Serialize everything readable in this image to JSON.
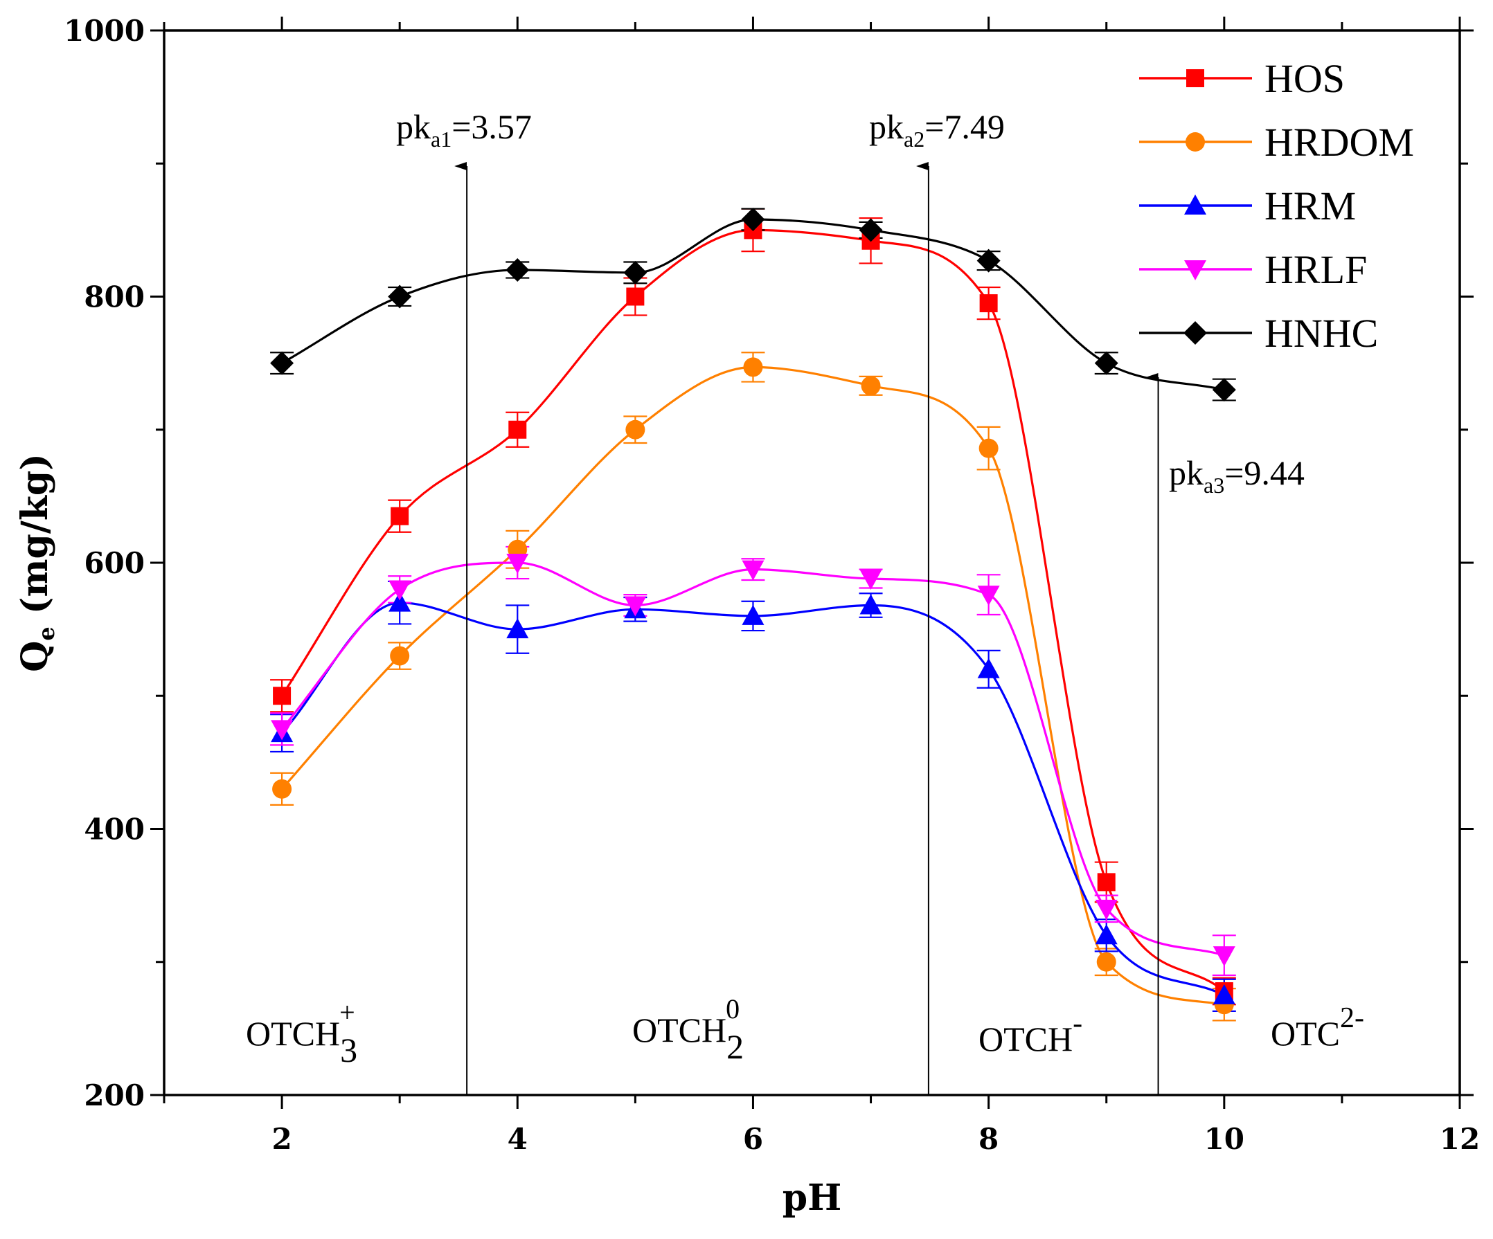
{
  "chart_data": {
    "type": "line",
    "title": "",
    "xlabel": "pH",
    "ylabel": "Q",
    "ylabel_sub": "e",
    "ylabel_unit": "(mg/kg)",
    "xlim": [
      1,
      12
    ],
    "ylim": [
      200,
      1000
    ],
    "xticks": [
      2,
      4,
      6,
      8,
      10,
      12
    ],
    "yticks": [
      200,
      400,
      600,
      800,
      1000
    ],
    "grid": false,
    "legend_position": "top-right",
    "x": [
      2,
      3,
      4,
      5,
      6,
      7,
      8,
      9,
      10
    ],
    "series": [
      {
        "name": "HOS",
        "color": "#ff0000",
        "marker": "square",
        "values": [
          500,
          635,
          700,
          800,
          850,
          842,
          795,
          360,
          278
        ],
        "errors": [
          12,
          12,
          13,
          14,
          16,
          17,
          12,
          15,
          10
        ]
      },
      {
        "name": "HRDOM",
        "color": "#ff8000",
        "marker": "circle",
        "values": [
          430,
          530,
          610,
          700,
          747,
          733,
          686,
          300,
          268
        ],
        "errors": [
          12,
          10,
          14,
          10,
          11,
          7,
          16,
          10,
          12
        ]
      },
      {
        "name": "HRM",
        "color": "#0000ff",
        "marker": "triangle-up",
        "values": [
          472,
          570,
          550,
          565,
          560,
          568,
          520,
          320,
          275
        ],
        "errors": [
          14,
          16,
          18,
          9,
          11,
          9,
          14,
          12,
          12
        ]
      },
      {
        "name": "HRLF",
        "color": "#ff00ff",
        "marker": "triangle-down",
        "values": [
          475,
          580,
          600,
          568,
          595,
          588,
          576,
          340,
          305
        ],
        "errors": [
          12,
          10,
          12,
          8,
          8,
          7,
          15,
          10,
          15
        ]
      },
      {
        "name": "HNHC",
        "color": "#000000",
        "marker": "diamond",
        "values": [
          750,
          800,
          820,
          818,
          858,
          850,
          827,
          750,
          730
        ],
        "errors": [
          8,
          7,
          6,
          8,
          8,
          6,
          7,
          8,
          8
        ]
      }
    ],
    "pka_lines": [
      {
        "x": 3.57,
        "label_main": "pk",
        "label_sub": "a1",
        "label_value": "=3.57"
      },
      {
        "x": 7.49,
        "label_main": "pk",
        "label_sub": "a2",
        "label_value": "=7.49"
      },
      {
        "x": 9.44,
        "label_main": "pk",
        "label_sub": "a3",
        "label_value": "=9.44"
      }
    ],
    "species_labels": [
      {
        "base": "OTCH",
        "sub": "3",
        "sup": "+"
      },
      {
        "base": "OTCH",
        "sub": "2",
        "sup": "0"
      },
      {
        "base": "OTCH",
        "sub": "",
        "sup": "-"
      },
      {
        "base": "OTC",
        "sub": "",
        "sup": "2-"
      }
    ]
  }
}
